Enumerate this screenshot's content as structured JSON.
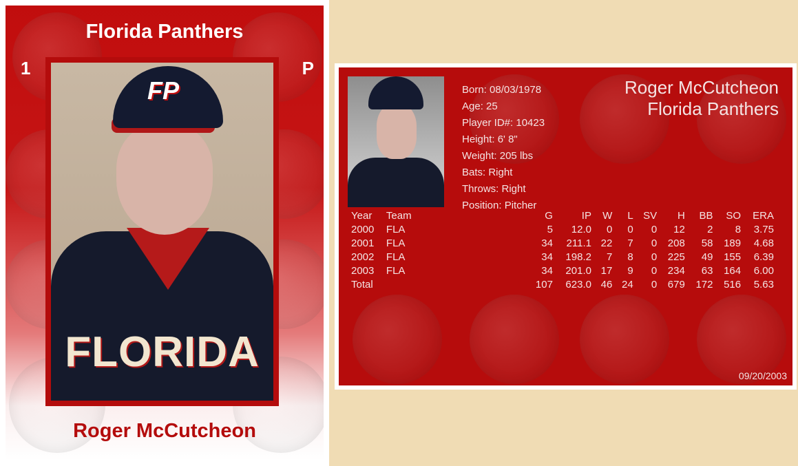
{
  "front": {
    "team": "Florida Panthers",
    "number": "1",
    "position": "P",
    "player_name": "Roger McCutcheon",
    "jersey_text": "FLORIDA",
    "cap_logo": "FP"
  },
  "back": {
    "name": "Roger McCutcheon",
    "team": "Florida Panthers",
    "bio": [
      "Born: 08/03/1978",
      "Age: 25",
      "Player ID#: 10423",
      "Height: 6' 8\"",
      "Weight: 205 lbs",
      "Bats: Right",
      "Throws: Right",
      "Position: Pitcher"
    ],
    "stats": {
      "headers": [
        "Year",
        "Team",
        "G",
        "IP",
        "W",
        "L",
        "SV",
        "H",
        "BB",
        "SO",
        "ERA"
      ],
      "rows": [
        [
          "2000",
          "FLA",
          "5",
          "12.0",
          "0",
          "0",
          "0",
          "12",
          "2",
          "8",
          "3.75"
        ],
        [
          "2001",
          "FLA",
          "34",
          "211.1",
          "22",
          "7",
          "0",
          "208",
          "58",
          "189",
          "4.68"
        ],
        [
          "2002",
          "FLA",
          "34",
          "198.2",
          "7",
          "8",
          "0",
          "225",
          "49",
          "155",
          "6.39"
        ],
        [
          "2003",
          "FLA",
          "34",
          "201.0",
          "17",
          "9",
          "0",
          "234",
          "63",
          "164",
          "6.00"
        ],
        [
          "Total",
          "",
          "107",
          "623.0",
          "46",
          "24",
          "0",
          "679",
          "172",
          "516",
          "5.63"
        ]
      ]
    },
    "date": "09/20/2003"
  },
  "colors": {
    "card_red": "#b60c0c",
    "background": "#f0dcb4"
  }
}
